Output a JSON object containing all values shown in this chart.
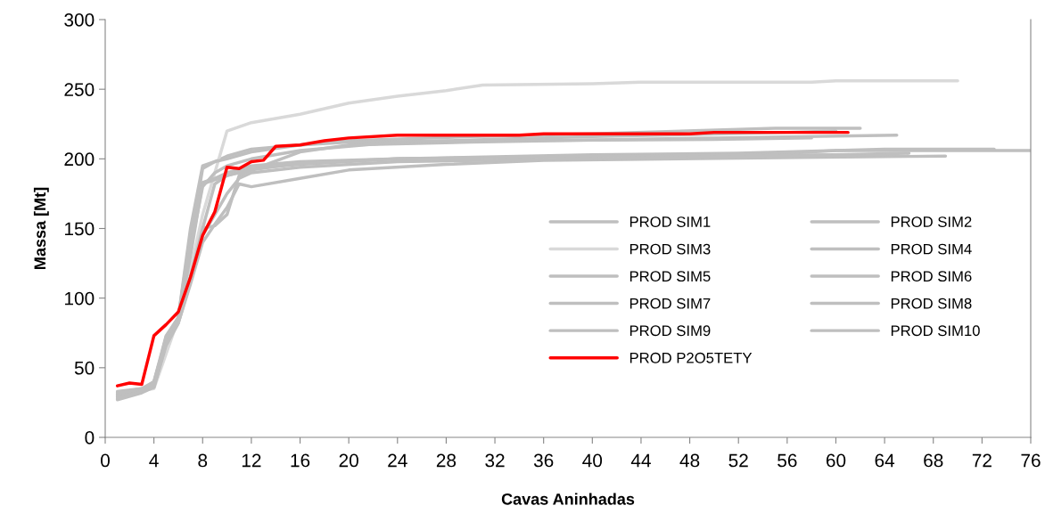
{
  "chart_data": {
    "type": "line",
    "xlabel": "Cavas Aninhadas",
    "ylabel": "Massa [Mt]",
    "xlim": [
      0,
      76
    ],
    "xticks": [
      0,
      4,
      8,
      12,
      16,
      20,
      24,
      28,
      32,
      36,
      40,
      44,
      48,
      52,
      56,
      60,
      64,
      68,
      72,
      76
    ],
    "ylim": [
      0,
      300
    ],
    "yticks": [
      0,
      50,
      100,
      150,
      200,
      250,
      300
    ],
    "grid": false,
    "legend": "right",
    "marker": "none",
    "line_style": "solid",
    "series": [
      {
        "name": "PROD SIM1",
        "color": "#bfbfbf",
        "x": [
          1,
          3,
          4,
          5,
          6,
          7,
          8,
          9,
          10,
          12,
          16,
          20,
          30,
          40,
          55,
          62
        ],
        "values": [
          32,
          35,
          38,
          72,
          85,
          140,
          193,
          198,
          202,
          207,
          210,
          213,
          216,
          218,
          222,
          222
        ]
      },
      {
        "name": "PROD SIM2",
        "color": "#bfbfbf",
        "x": [
          1,
          3,
          4,
          5,
          6,
          7,
          8,
          9,
          10,
          11,
          12,
          16,
          20,
          30,
          50,
          65
        ],
        "values": [
          30,
          34,
          40,
          70,
          84,
          120,
          150,
          152,
          160,
          188,
          192,
          205,
          210,
          212,
          215,
          217
        ]
      },
      {
        "name": "PROD SIM3",
        "color": "#d9d9d9",
        "x": [
          1,
          4,
          5,
          6,
          7,
          8,
          9,
          10,
          12,
          16,
          20,
          24,
          28,
          31,
          40,
          44,
          58,
          60,
          70
        ],
        "values": [
          31,
          35,
          60,
          85,
          120,
          160,
          190,
          220,
          226,
          232,
          240,
          245,
          249,
          253,
          254,
          255,
          255,
          256,
          256
        ]
      },
      {
        "name": "PROD SIM4",
        "color": "#bfbfbf",
        "x": [
          1,
          3,
          4,
          5,
          6,
          7,
          8,
          9,
          10,
          12,
          16,
          24,
          40,
          56,
          60,
          76
        ],
        "values": [
          29,
          33,
          36,
          68,
          83,
          115,
          150,
          182,
          188,
          193,
          196,
          200,
          202,
          204,
          206,
          206
        ]
      },
      {
        "name": "PROD SIM5",
        "color": "#bfbfbf",
        "x": [
          1,
          3,
          4,
          5,
          6,
          7,
          8,
          9,
          10,
          12,
          16,
          24,
          40,
          52,
          64,
          73
        ],
        "values": [
          31,
          34,
          37,
          70,
          84,
          130,
          183,
          186,
          190,
          195,
          198,
          200,
          203,
          204,
          207,
          207
        ]
      },
      {
        "name": "PROD SIM6",
        "color": "#bfbfbf",
        "x": [
          1,
          3,
          4,
          5,
          6,
          7,
          8,
          9,
          10,
          11,
          12,
          16,
          20,
          28,
          36,
          57,
          69
        ],
        "values": [
          27,
          32,
          36,
          66,
          82,
          110,
          140,
          153,
          165,
          182,
          180,
          186,
          192,
          196,
          199,
          201,
          202
        ]
      },
      {
        "name": "PROD SIM7",
        "color": "#bfbfbf",
        "x": [
          1,
          3,
          4,
          5,
          6,
          7,
          8,
          9,
          10,
          12,
          16,
          24,
          40,
          60,
          66
        ],
        "values": [
          30,
          34,
          38,
          72,
          86,
          145,
          182,
          185,
          188,
          192,
          197,
          200,
          202,
          203,
          204
        ]
      },
      {
        "name": "PROD SIM8",
        "color": "#bfbfbf",
        "x": [
          1,
          3,
          4,
          5,
          6,
          7,
          8,
          9,
          10,
          12,
          16,
          20,
          30,
          50,
          58
        ],
        "values": [
          33,
          35,
          40,
          73,
          86,
          150,
          195,
          198,
          200,
          205,
          210,
          212,
          213,
          214,
          215
        ]
      },
      {
        "name": "PROD SIM9",
        "color": "#bfbfbf",
        "x": [
          1,
          3,
          4,
          5,
          6,
          7,
          8,
          9,
          10,
          12,
          16,
          24,
          40,
          56,
          60
        ],
        "values": [
          32,
          34,
          39,
          71,
          85,
          135,
          180,
          190,
          195,
          200,
          206,
          212,
          216,
          219,
          220
        ]
      },
      {
        "name": "PROD SIM10",
        "color": "#bfbfbf",
        "x": [
          1,
          3,
          4,
          5,
          6,
          7,
          8,
          9,
          10,
          11,
          12,
          16,
          24,
          40,
          56,
          64
        ],
        "values": [
          28,
          33,
          37,
          67,
          82,
          112,
          145,
          160,
          175,
          186,
          190,
          194,
          198,
          200,
          202,
          203
        ]
      },
      {
        "name": "PROD P2O5TETY",
        "color": "#ff0000",
        "x": [
          1,
          2,
          3,
          4,
          5,
          6,
          7,
          8,
          9,
          10,
          11,
          12,
          13,
          14,
          16,
          18,
          20,
          24,
          34,
          36,
          48,
          50,
          61
        ],
        "values": [
          37,
          39,
          38,
          73,
          81,
          90,
          115,
          145,
          162,
          194,
          193,
          198,
          199,
          209,
          210,
          213,
          215,
          217,
          217,
          218,
          218,
          219,
          219
        ]
      }
    ]
  }
}
